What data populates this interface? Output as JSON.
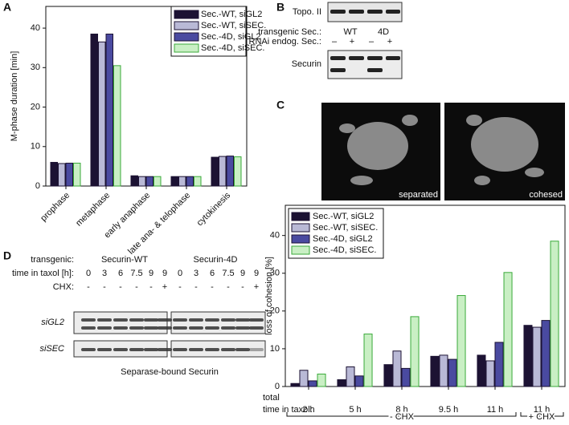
{
  "panel_labels": [
    "A",
    "B",
    "C",
    "D"
  ],
  "chart_data": [
    {
      "type": "bar",
      "ylabel": "M-phase duration [min]",
      "categories": [
        "prophase",
        "metaphase",
        "early anaphase",
        "late ana- & telophase",
        "cytokinesis"
      ],
      "series": [
        {
          "name": "Sec.-WT, siGL2",
          "color": "#1c1233",
          "edgecolor": "#1c1233",
          "values": [
            6.0,
            38.5,
            2.6,
            2.4,
            7.3
          ]
        },
        {
          "name": "Sec.-WT, siSEC.",
          "color": "#b9b9d6",
          "edgecolor": "#1c1233",
          "values": [
            5.7,
            36.5,
            2.4,
            2.4,
            7.5
          ]
        },
        {
          "name": "Sec.-4D, siGL2",
          "color": "#4a4aa0",
          "edgecolor": "#1c1233",
          "values": [
            5.8,
            38.5,
            2.4,
            2.4,
            7.6
          ]
        },
        {
          "name": "Sec.-4D, siSEC.",
          "color": "#c9efc4",
          "edgecolor": "#3aaa3a",
          "values": [
            5.8,
            30.5,
            2.4,
            2.4,
            7.4
          ]
        }
      ],
      "ylim": [
        0,
        45.5
      ],
      "yticks": [
        0,
        10,
        20,
        30,
        40
      ],
      "legend": "upper right"
    },
    {
      "type": "bar",
      "ylabel": "loss of cohesion [%]",
      "xlabel": [
        "total",
        "time in taxol:"
      ],
      "categories": [
        "2 h",
        "5 h",
        "8 h",
        "9.5 h",
        "11 h",
        "11 h"
      ],
      "groups": [
        "- CHX",
        "+ CHX"
      ],
      "series": [
        {
          "name": "Sec.-WT, siGL2",
          "color": "#1c1233",
          "edgecolor": "#1c1233",
          "values": [
            0.8,
            1.8,
            5.8,
            8.0,
            8.3,
            16.2
          ]
        },
        {
          "name": "Sec.-WT, siSEC.",
          "color": "#b9b9d6",
          "edgecolor": "#1c1233",
          "values": [
            4.3,
            5.2,
            9.4,
            8.3,
            6.8,
            15.7
          ]
        },
        {
          "name": "Sec.-4D, siGL2",
          "color": "#4a4aa0",
          "edgecolor": "#1c1233",
          "values": [
            1.5,
            2.8,
            4.8,
            7.2,
            11.7,
            17.5
          ]
        },
        {
          "name": "Sec.-4D, siSEC.",
          "color": "#c9efc4",
          "edgecolor": "#3aaa3a",
          "values": [
            3.3,
            13.9,
            18.5,
            24.1,
            30.2,
            38.5
          ]
        }
      ],
      "ylim": [
        0,
        48
      ],
      "yticks": [
        0,
        10,
        20,
        30,
        40
      ],
      "legend": "upper left"
    }
  ],
  "blot_b": {
    "topo": "Topo. II",
    "transgenic": "transgenic Sec.:",
    "wt": "WT",
    "d4": "4D",
    "rnai": "RNAi endog. Sec.:",
    "signs": [
      "–",
      "+",
      "–",
      "+"
    ],
    "securin": "Securin"
  },
  "micrographs": [
    "separated",
    "cohesed"
  ],
  "blot_d": {
    "transgenic": "transgenic:",
    "wt": "Securin-WT",
    "d4": "Securin-4D",
    "time": "time in taxol [h]:",
    "times": [
      "0",
      "3",
      "6",
      "7.5",
      "9",
      "9",
      "0",
      "3",
      "6",
      "7.5",
      "9",
      "9"
    ],
    "chx": "CHX:",
    "chx_signs": [
      "-",
      "-",
      "-",
      "-",
      "-",
      "+",
      "-",
      "-",
      "-",
      "-",
      "-",
      "+"
    ],
    "rows": [
      "siGL2",
      "siSEC"
    ],
    "caption": "Separase-bound Securin"
  }
}
